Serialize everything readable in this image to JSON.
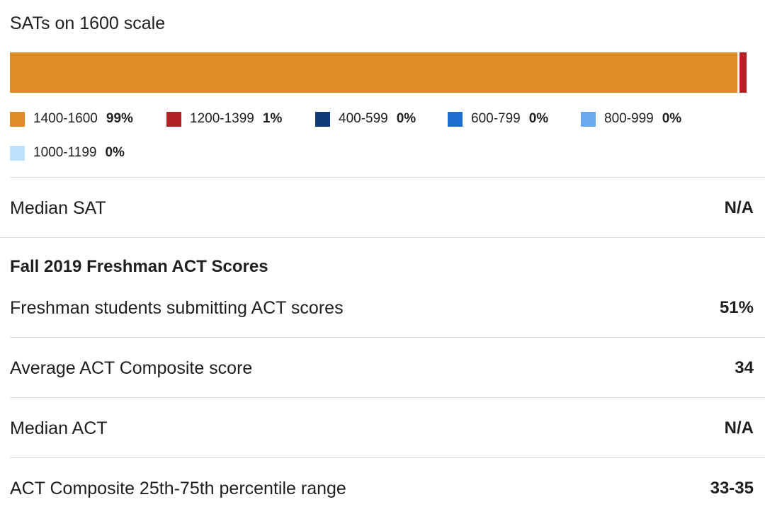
{
  "sat": {
    "title": "SATs on 1600 scale",
    "distribution": [
      {
        "range": "1400-1600",
        "percent_label": "99%",
        "percent": 99,
        "color": "#e08c26"
      },
      {
        "range": "1200-1399",
        "percent_label": "1%",
        "percent": 1,
        "color": "#b22126"
      },
      {
        "range": "400-599",
        "percent_label": "0%",
        "percent": 0,
        "color": "#0d3b78"
      },
      {
        "range": "600-799",
        "percent_label": "0%",
        "percent": 0,
        "color": "#1f6fd0"
      },
      {
        "range": "800-999",
        "percent_label": "0%",
        "percent": 0,
        "color": "#6aa8ef"
      },
      {
        "range": "1000-1199",
        "percent_label": "0%",
        "percent": 0,
        "color": "#bfe0fb"
      }
    ],
    "median_label": "Median SAT",
    "median_value": "N/A"
  },
  "act": {
    "section_title": "Fall 2019 Freshman ACT Scores",
    "rows": [
      {
        "label": "Freshman students submitting ACT scores",
        "value": "51%"
      },
      {
        "label": "Average ACT Composite score",
        "value": "34"
      },
      {
        "label": "Median ACT",
        "value": "N/A"
      },
      {
        "label": "ACT Composite 25th-75th percentile range",
        "value": "33-35"
      }
    ]
  }
}
